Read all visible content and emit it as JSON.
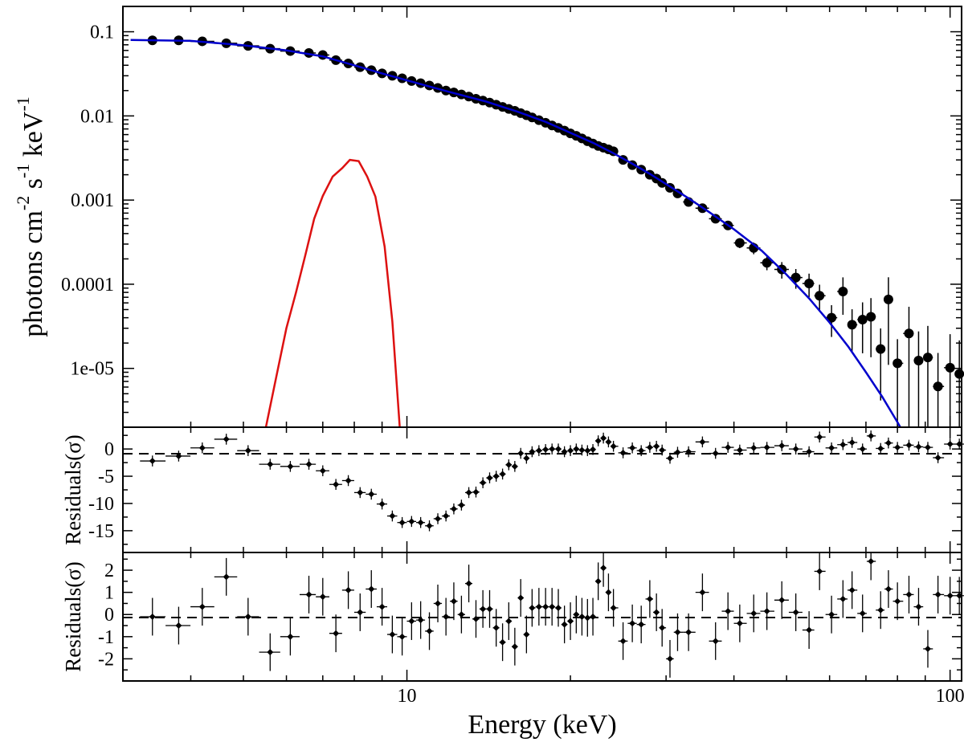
{
  "chart_data": [
    {
      "panel": "spectrum",
      "type": "scatter",
      "xscale": "log",
      "yscale": "log",
      "xlim": [
        3.0,
        105
      ],
      "ylim": [
        2e-06,
        0.2
      ],
      "ylabel_main": "photons cm",
      "ylabel_sup1": "-2",
      "ylabel_mid": " s",
      "ylabel_sup2": "-1",
      "ylabel_end": " keV",
      "ylabel_sup3": "-1",
      "yticks": [
        0.1,
        0.01,
        0.001,
        0.0001,
        1e-05
      ],
      "ytick_labels": [
        "0.1",
        "0.01",
        "0.001",
        "0.0001",
        "1e-05"
      ],
      "data_color": "#000000",
      "model_color": "#0000cc",
      "line_color": "#dd1111",
      "data": [
        [
          3.4,
          0.079
        ],
        [
          3.8,
          0.079
        ],
        [
          4.2,
          0.077
        ],
        [
          4.65,
          0.073
        ],
        [
          5.1,
          0.068
        ],
        [
          5.6,
          0.063
        ],
        [
          6.1,
          0.059
        ],
        [
          6.6,
          0.056
        ],
        [
          7.0,
          0.053
        ],
        [
          7.4,
          0.046
        ],
        [
          7.8,
          0.042
        ],
        [
          8.2,
          0.038
        ],
        [
          8.6,
          0.035
        ],
        [
          9.0,
          0.032
        ],
        [
          9.4,
          0.03
        ],
        [
          9.8,
          0.028
        ],
        [
          10.2,
          0.026
        ],
        [
          10.6,
          0.0245
        ],
        [
          11.0,
          0.023
        ],
        [
          11.4,
          0.0215
        ],
        [
          11.8,
          0.02
        ],
        [
          12.2,
          0.019
        ],
        [
          12.6,
          0.018
        ],
        [
          13.0,
          0.017
        ],
        [
          13.4,
          0.016
        ],
        [
          13.8,
          0.0152
        ],
        [
          14.2,
          0.0144
        ],
        [
          14.6,
          0.0136
        ],
        [
          15.0,
          0.0128
        ],
        [
          15.4,
          0.0121
        ],
        [
          15.8,
          0.0115
        ],
        [
          16.2,
          0.0108
        ],
        [
          16.6,
          0.0102
        ],
        [
          17.0,
          0.0096
        ],
        [
          17.5,
          0.0089
        ],
        [
          18.0,
          0.0083
        ],
        [
          18.5,
          0.0077
        ],
        [
          19.0,
          0.0072
        ],
        [
          19.5,
          0.0067
        ],
        [
          20.0,
          0.0062
        ],
        [
          20.5,
          0.0058
        ],
        [
          21.0,
          0.0054
        ],
        [
          21.5,
          0.005
        ],
        [
          22.0,
          0.0047
        ],
        [
          22.5,
          0.0044
        ],
        [
          23.0,
          0.0042
        ],
        [
          23.5,
          0.004
        ],
        [
          24.0,
          0.0038
        ],
        [
          25.0,
          0.003
        ],
        [
          26.0,
          0.0026
        ],
        [
          27.0,
          0.0023
        ],
        [
          28.0,
          0.002
        ],
        [
          28.8,
          0.0018
        ],
        [
          29.5,
          0.0016
        ],
        [
          30.5,
          0.0014
        ],
        [
          31.5,
          0.0012
        ],
        [
          33.0,
          0.00095
        ],
        [
          35.0,
          0.0008
        ],
        [
          37.0,
          0.0006
        ],
        [
          39.0,
          0.0005
        ],
        [
          41.0,
          0.00031
        ],
        [
          43.5,
          0.00027
        ],
        [
          46.0,
          0.00018
        ],
        [
          49.0,
          0.00015
        ],
        [
          52.0,
          0.00012
        ],
        [
          55.0,
          0.000102
        ],
        [
          57.5,
          7.3e-05
        ],
        [
          60.5,
          4e-05
        ],
        [
          63.5,
          8.2e-05
        ],
        [
          66.0,
          3.3e-05
        ],
        [
          69.0,
          3.8e-05
        ],
        [
          71.5,
          4.1e-05
        ],
        [
          74.5,
          1.7e-05
        ],
        [
          77.0,
          6.6e-05
        ],
        [
          80.0,
          1.15e-05
        ],
        [
          84.0,
          2.6e-05
        ],
        [
          87.5,
          1.24e-05
        ],
        [
          91.0,
          1.35e-05
        ],
        [
          95.0,
          6.1e-06
        ],
        [
          100.0,
          1.02e-05
        ],
        [
          104.0,
          8.6e-06
        ]
      ],
      "line_curve": [
        [
          5.5,
          2e-06
        ],
        [
          5.75,
          8e-06
        ],
        [
          6.0,
          3e-05
        ],
        [
          6.25,
          8e-05
        ],
        [
          6.5,
          0.00022
        ],
        [
          6.75,
          0.0006
        ],
        [
          7.0,
          0.00112
        ],
        [
          7.3,
          0.0019
        ],
        [
          7.6,
          0.0024
        ],
        [
          7.85,
          0.003
        ],
        [
          8.15,
          0.0029
        ],
        [
          8.45,
          0.0019
        ],
        [
          8.75,
          0.0011
        ],
        [
          9.1,
          0.00028
        ],
        [
          9.4,
          3.6e-05
        ],
        [
          9.7,
          2e-06
        ]
      ],
      "model_curve": [
        [
          3.1,
          0.08
        ],
        [
          4.0,
          0.078
        ],
        [
          5.0,
          0.069
        ],
        [
          6.0,
          0.06
        ],
        [
          7.0,
          0.051
        ],
        [
          8.0,
          0.04
        ],
        [
          9.0,
          0.032
        ],
        [
          10.0,
          0.0265
        ],
        [
          12.0,
          0.0192
        ],
        [
          14.0,
          0.0148
        ],
        [
          16.0,
          0.0112
        ],
        [
          18.0,
          0.0085
        ],
        [
          20.0,
          0.0063
        ],
        [
          22.0,
          0.0048
        ],
        [
          24.0,
          0.0036
        ],
        [
          26.0,
          0.0027
        ],
        [
          28.0,
          0.00205
        ],
        [
          30.0,
          0.00155
        ],
        [
          33.0,
          0.00105
        ],
        [
          36.0,
          0.00072
        ],
        [
          40.0,
          0.00045
        ],
        [
          45.0,
          0.00025
        ],
        [
          50.0,
          0.00013
        ],
        [
          55.0,
          6.8e-05
        ],
        [
          60.0,
          3.5e-05
        ],
        [
          65.0,
          1.8e-05
        ],
        [
          70.0,
          9e-06
        ],
        [
          75.0,
          4.6e-06
        ],
        [
          80.0,
          2.3e-06
        ],
        [
          83.0,
          1.5e-06
        ]
      ]
    },
    {
      "panel": "residuals_1",
      "type": "scatter",
      "xscale": "log",
      "ylim": [
        -19,
        4
      ],
      "ylabel": "Residuals(σ)",
      "yticks": [
        0,
        -5,
        -10,
        -15
      ],
      "ytick_labels": [
        "0",
        "-5",
        "-10",
        "-15"
      ],
      "data": [
        [
          3.4,
          -2.2
        ],
        [
          3.8,
          -1.3
        ],
        [
          4.2,
          0.2
        ],
        [
          4.65,
          1.8
        ],
        [
          5.1,
          -0.3
        ],
        [
          5.6,
          -2.8
        ],
        [
          6.1,
          -3.2
        ],
        [
          6.6,
          -2.8
        ],
        [
          7.0,
          -4.0
        ],
        [
          7.4,
          -6.5
        ],
        [
          7.8,
          -5.8
        ],
        [
          8.2,
          -8.0
        ],
        [
          8.6,
          -8.3
        ],
        [
          9.0,
          -10.1
        ],
        [
          9.4,
          -12.3
        ],
        [
          9.8,
          -13.5
        ],
        [
          10.2,
          -13.3
        ],
        [
          10.6,
          -13.5
        ],
        [
          11.0,
          -14.1
        ],
        [
          11.4,
          -12.8
        ],
        [
          11.8,
          -12.3
        ],
        [
          12.2,
          -11.0
        ],
        [
          12.6,
          -10.3
        ],
        [
          13.0,
          -8.0
        ],
        [
          13.4,
          -7.9
        ],
        [
          13.8,
          -6.2
        ],
        [
          14.2,
          -5.3
        ],
        [
          14.6,
          -5.0
        ],
        [
          15.0,
          -4.6
        ],
        [
          15.4,
          -2.9
        ],
        [
          15.8,
          -3.2
        ],
        [
          16.2,
          -0.8
        ],
        [
          16.6,
          -1.7
        ],
        [
          17.0,
          -0.5
        ],
        [
          17.5,
          -0.3
        ],
        [
          18.0,
          -0.1
        ],
        [
          18.5,
          0.0
        ],
        [
          19.0,
          0.0
        ],
        [
          19.5,
          -0.5
        ],
        [
          20.0,
          -0.3
        ],
        [
          20.5,
          0.0
        ],
        [
          21.0,
          -0.2
        ],
        [
          21.5,
          -0.3
        ],
        [
          22.0,
          -0.1
        ],
        [
          22.5,
          1.5
        ],
        [
          23.0,
          2.0
        ],
        [
          23.5,
          1.3
        ],
        [
          24.0,
          0.5
        ],
        [
          25.0,
          -0.7
        ],
        [
          26.0,
          0.2
        ],
        [
          27.0,
          -0.3
        ],
        [
          28.0,
          0.3
        ],
        [
          28.8,
          0.5
        ],
        [
          29.5,
          -0.2
        ],
        [
          30.5,
          -1.7
        ],
        [
          31.5,
          -0.6
        ],
        [
          33.0,
          -0.5
        ],
        [
          35.0,
          1.3
        ],
        [
          37.0,
          -0.8
        ],
        [
          39.0,
          0.3
        ],
        [
          41.0,
          -0.2
        ],
        [
          43.5,
          0.2
        ],
        [
          46.0,
          0.3
        ],
        [
          49.0,
          0.6
        ],
        [
          52.0,
          0.0
        ],
        [
          55.0,
          -0.5
        ],
        [
          57.5,
          2.2
        ],
        [
          60.5,
          0.2
        ],
        [
          63.5,
          0.8
        ],
        [
          66.0,
          1.2
        ],
        [
          69.0,
          0.0
        ],
        [
          71.5,
          2.4
        ],
        [
          74.5,
          0.1
        ],
        [
          77.0,
          1.1
        ],
        [
          80.0,
          0.3
        ],
        [
          84.0,
          0.7
        ],
        [
          87.5,
          0.4
        ],
        [
          91.0,
          0.3
        ],
        [
          95.0,
          -1.6
        ],
        [
          100.0,
          0.9
        ],
        [
          104.0,
          0.9
        ]
      ]
    },
    {
      "panel": "residuals_2",
      "type": "scatter",
      "xscale": "log",
      "ylim": [
        -3,
        2.8
      ],
      "ylabel": "Residuals(σ)",
      "xlabel": "Energy (keV)",
      "xticks": [
        10,
        100
      ],
      "xtick_labels": [
        "10",
        "100"
      ],
      "yticks": [
        2,
        1,
        0,
        -1,
        -2
      ],
      "ytick_labels": [
        "2",
        "1",
        "0",
        "-1",
        "-2"
      ],
      "data": [
        [
          3.4,
          -0.1
        ],
        [
          3.8,
          -0.5
        ],
        [
          4.2,
          0.35
        ],
        [
          4.65,
          1.7
        ],
        [
          5.1,
          -0.1
        ],
        [
          5.6,
          -1.7
        ],
        [
          6.1,
          -1.0
        ],
        [
          6.6,
          0.9
        ],
        [
          7.0,
          0.8
        ],
        [
          7.4,
          -0.85
        ],
        [
          7.8,
          1.1
        ],
        [
          8.2,
          0.1
        ],
        [
          8.6,
          1.15
        ],
        [
          9.0,
          0.35
        ],
        [
          9.4,
          -0.9
        ],
        [
          9.8,
          -1.0
        ],
        [
          10.2,
          -0.3
        ],
        [
          10.6,
          -0.25
        ],
        [
          11.0,
          -0.75
        ],
        [
          11.4,
          0.5
        ],
        [
          11.8,
          -0.1
        ],
        [
          12.2,
          0.6
        ],
        [
          12.6,
          0.0
        ],
        [
          13.0,
          1.4
        ],
        [
          13.4,
          -0.2
        ],
        [
          13.8,
          0.25
        ],
        [
          14.2,
          0.25
        ],
        [
          14.6,
          -0.6
        ],
        [
          15.0,
          -1.25
        ],
        [
          15.4,
          -0.3
        ],
        [
          15.8,
          -1.45
        ],
        [
          16.2,
          0.75
        ],
        [
          16.6,
          -0.9
        ],
        [
          17.0,
          0.3
        ],
        [
          17.5,
          0.35
        ],
        [
          18.0,
          0.35
        ],
        [
          18.5,
          0.35
        ],
        [
          19.0,
          0.3
        ],
        [
          19.5,
          -0.45
        ],
        [
          20.0,
          -0.3
        ],
        [
          20.5,
          0.0
        ],
        [
          21.0,
          -0.1
        ],
        [
          21.5,
          -0.15
        ],
        [
          22.0,
          -0.1
        ],
        [
          22.5,
          1.5
        ],
        [
          23.0,
          2.1
        ],
        [
          23.5,
          1.0
        ],
        [
          24.0,
          0.3
        ],
        [
          25.0,
          -1.2
        ],
        [
          26.0,
          -0.4
        ],
        [
          27.0,
          -0.45
        ],
        [
          28.0,
          0.7
        ],
        [
          28.8,
          0.1
        ],
        [
          29.5,
          -0.6
        ],
        [
          30.5,
          -2.0
        ],
        [
          31.5,
          -0.8
        ],
        [
          33.0,
          -0.8
        ],
        [
          35.0,
          1.0
        ],
        [
          37.0,
          -1.2
        ],
        [
          39.0,
          0.15
        ],
        [
          41.0,
          -0.4
        ],
        [
          43.5,
          0.05
        ],
        [
          46.0,
          0.15
        ],
        [
          49.0,
          0.65
        ],
        [
          52.0,
          0.1
        ],
        [
          55.0,
          -0.7
        ],
        [
          57.5,
          1.95
        ],
        [
          60.5,
          0.0
        ],
        [
          63.5,
          0.7
        ],
        [
          66.0,
          1.1
        ],
        [
          69.0,
          0.05
        ],
        [
          71.5,
          2.4
        ],
        [
          74.5,
          0.2
        ],
        [
          77.0,
          1.15
        ],
        [
          80.0,
          0.6
        ],
        [
          84.0,
          0.9
        ],
        [
          87.5,
          0.35
        ],
        [
          91.0,
          -1.55
        ],
        [
          95.0,
          0.9
        ],
        [
          100.0,
          0.85
        ],
        [
          104.0,
          0.85
        ]
      ]
    }
  ]
}
